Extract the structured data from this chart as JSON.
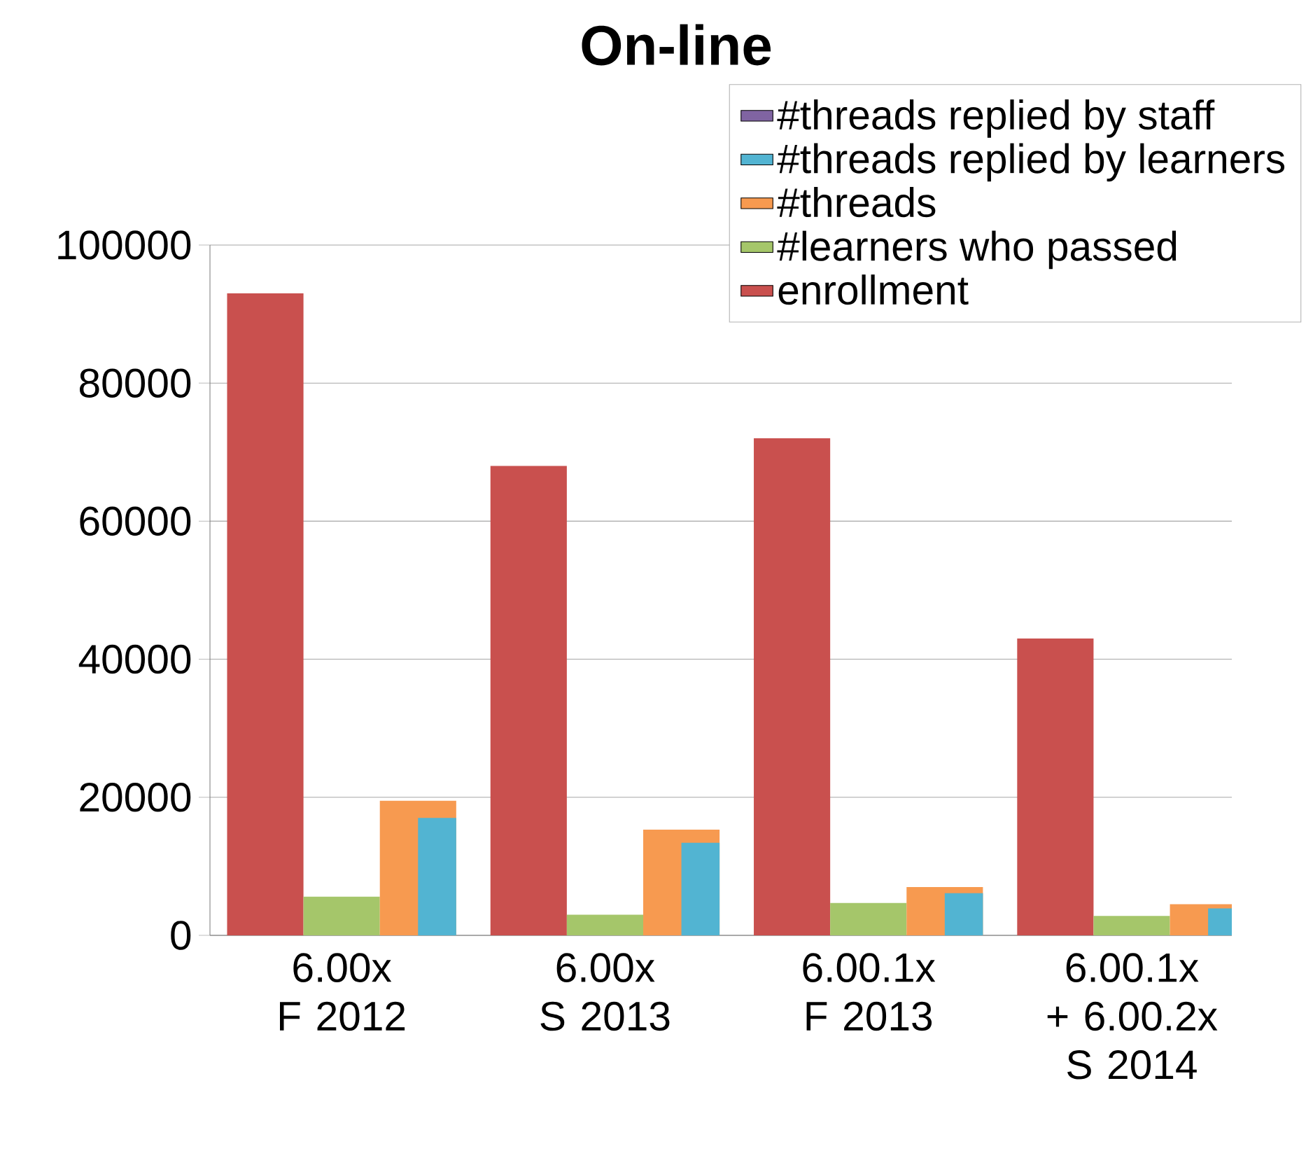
{
  "chart_data": {
    "type": "bar",
    "title": "On-line",
    "categories": [
      "6.00x F 2012",
      "6.00x S 2013",
      "6.00.1x F 2013",
      "6.00.1x + 6.00.2x S 2014"
    ],
    "series": [
      {
        "name": "enrollment",
        "color": "#c9504e",
        "values": [
          93000,
          68000,
          72000,
          43000
        ]
      },
      {
        "name": "#learners who passed",
        "color": "#a5c66a",
        "values": [
          5600,
          3000,
          4700,
          2800
        ]
      },
      {
        "name": "#threads",
        "color": "#f79a50",
        "values": [
          19500,
          15300,
          7000,
          4500
        ]
      },
      {
        "name": "#threads replied by learners",
        "color": "#52b4d2",
        "values": [
          17000,
          13400,
          6100,
          3900
        ]
      },
      {
        "name": "#threads replied by staff",
        "color": "#8064a2",
        "values": [
          null,
          null,
          null,
          null
        ]
      }
    ],
    "ylim": [
      0,
      100000
    ],
    "yticks": [
      0,
      20000,
      40000,
      60000,
      80000,
      100000
    ],
    "grid": "y",
    "legend": "top right"
  }
}
